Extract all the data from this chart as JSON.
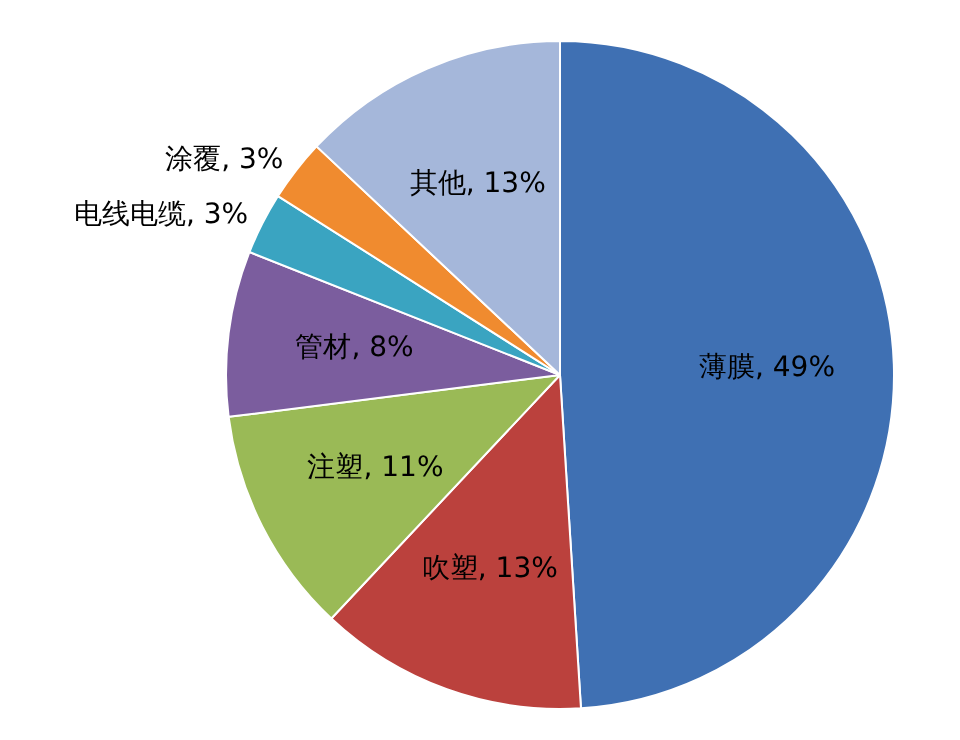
{
  "chart_data": {
    "type": "pie",
    "categories": [
      "薄膜",
      "吹塑",
      "注塑",
      "管材",
      "电线电缆",
      "涂覆",
      "其他"
    ],
    "values": [
      49,
      13,
      11,
      8,
      3,
      3,
      13
    ],
    "colors": [
      "#3f70b3",
      "#bb413d",
      "#9aba56",
      "#7b5d9e",
      "#3aa4c1",
      "#f08b2f",
      "#a5b7da"
    ],
    "value_labels": [
      "49%",
      "13%",
      "11%",
      "8%",
      "3%",
      "3%",
      "13%"
    ],
    "legend": false
  }
}
